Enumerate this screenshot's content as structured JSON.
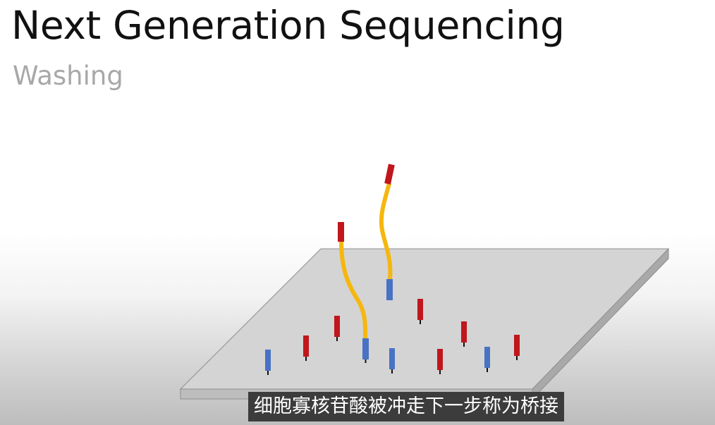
{
  "slide": {
    "title": "Next Generation Sequencing",
    "subtitle": "Washing"
  },
  "subtitle_caption": "细胞寡核苷酸被冲走下一步称为桥接",
  "colors": {
    "title": "#111111",
    "subtitle": "#a8a8a8",
    "plate_top": "#d4d4d4",
    "plate_edge": "#a9a9a9",
    "primer_red": "#c0161c",
    "primer_blue": "#4872c4",
    "strand_yellow": "#f5b70f",
    "caption_bg": "#3c3c3c"
  }
}
